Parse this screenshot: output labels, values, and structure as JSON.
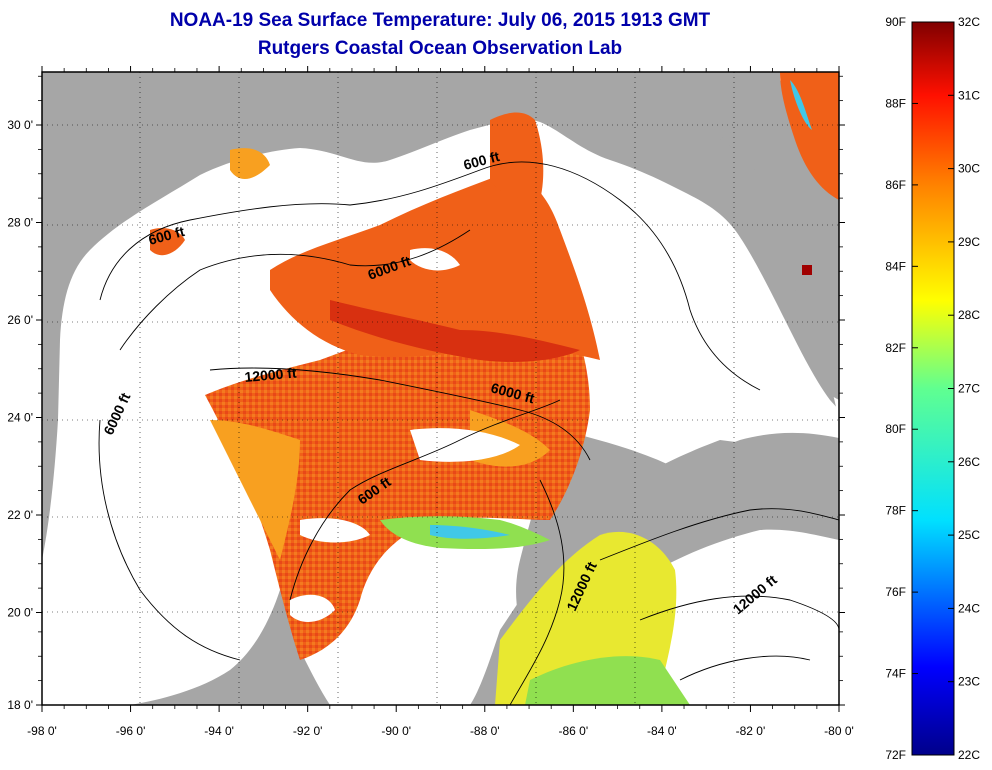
{
  "title": {
    "line1": "NOAA-19 Sea Surface Temperature:  July 06, 2015 1913 GMT",
    "line2": "Rutgers Coastal Ocean Observation Lab"
  },
  "axes": {
    "x_ticks": [
      "-98 0'",
      "-96 0'",
      "-94 0'",
      "-92 0'",
      "-90 0'",
      "-88 0'",
      "-86 0'",
      "-84 0'",
      "-82 0'",
      "-80 0'"
    ],
    "y_ticks": [
      "30 0'",
      "28 0'",
      "26 0'",
      "24 0'",
      "22 0'",
      "20 0'",
      "18 0'"
    ]
  },
  "contours": {
    "c600_a": "600 ft",
    "c600_b": "600 ft",
    "c600_c": "600 ft",
    "c6000_a": "6000 ft",
    "c6000_b": "6000 ft",
    "c6000_c": "6000 ft",
    "c12000_a": "12000 ft",
    "c12000_b": "12000 ft",
    "c12000_c": "12000 ft"
  },
  "colorbar": {
    "f_labels": [
      "90F",
      "88F",
      "86F",
      "84F",
      "82F",
      "80F",
      "78F",
      "76F",
      "74F",
      "72F"
    ],
    "c_labels": [
      "32C",
      "31C",
      "30C",
      "29C",
      "28C",
      "27C",
      "26C",
      "25C",
      "24C",
      "23C",
      "22C"
    ]
  },
  "colors": {
    "land": "#a6a6a6",
    "ocean_nodata": "#ffffff",
    "sst_warm": "#f06018",
    "sst_hot": "#d82010",
    "sst_mid": "#f8a020",
    "sst_yellow": "#e8e830",
    "sst_green": "#90e050",
    "sst_cyan": "#40c8e8"
  }
}
